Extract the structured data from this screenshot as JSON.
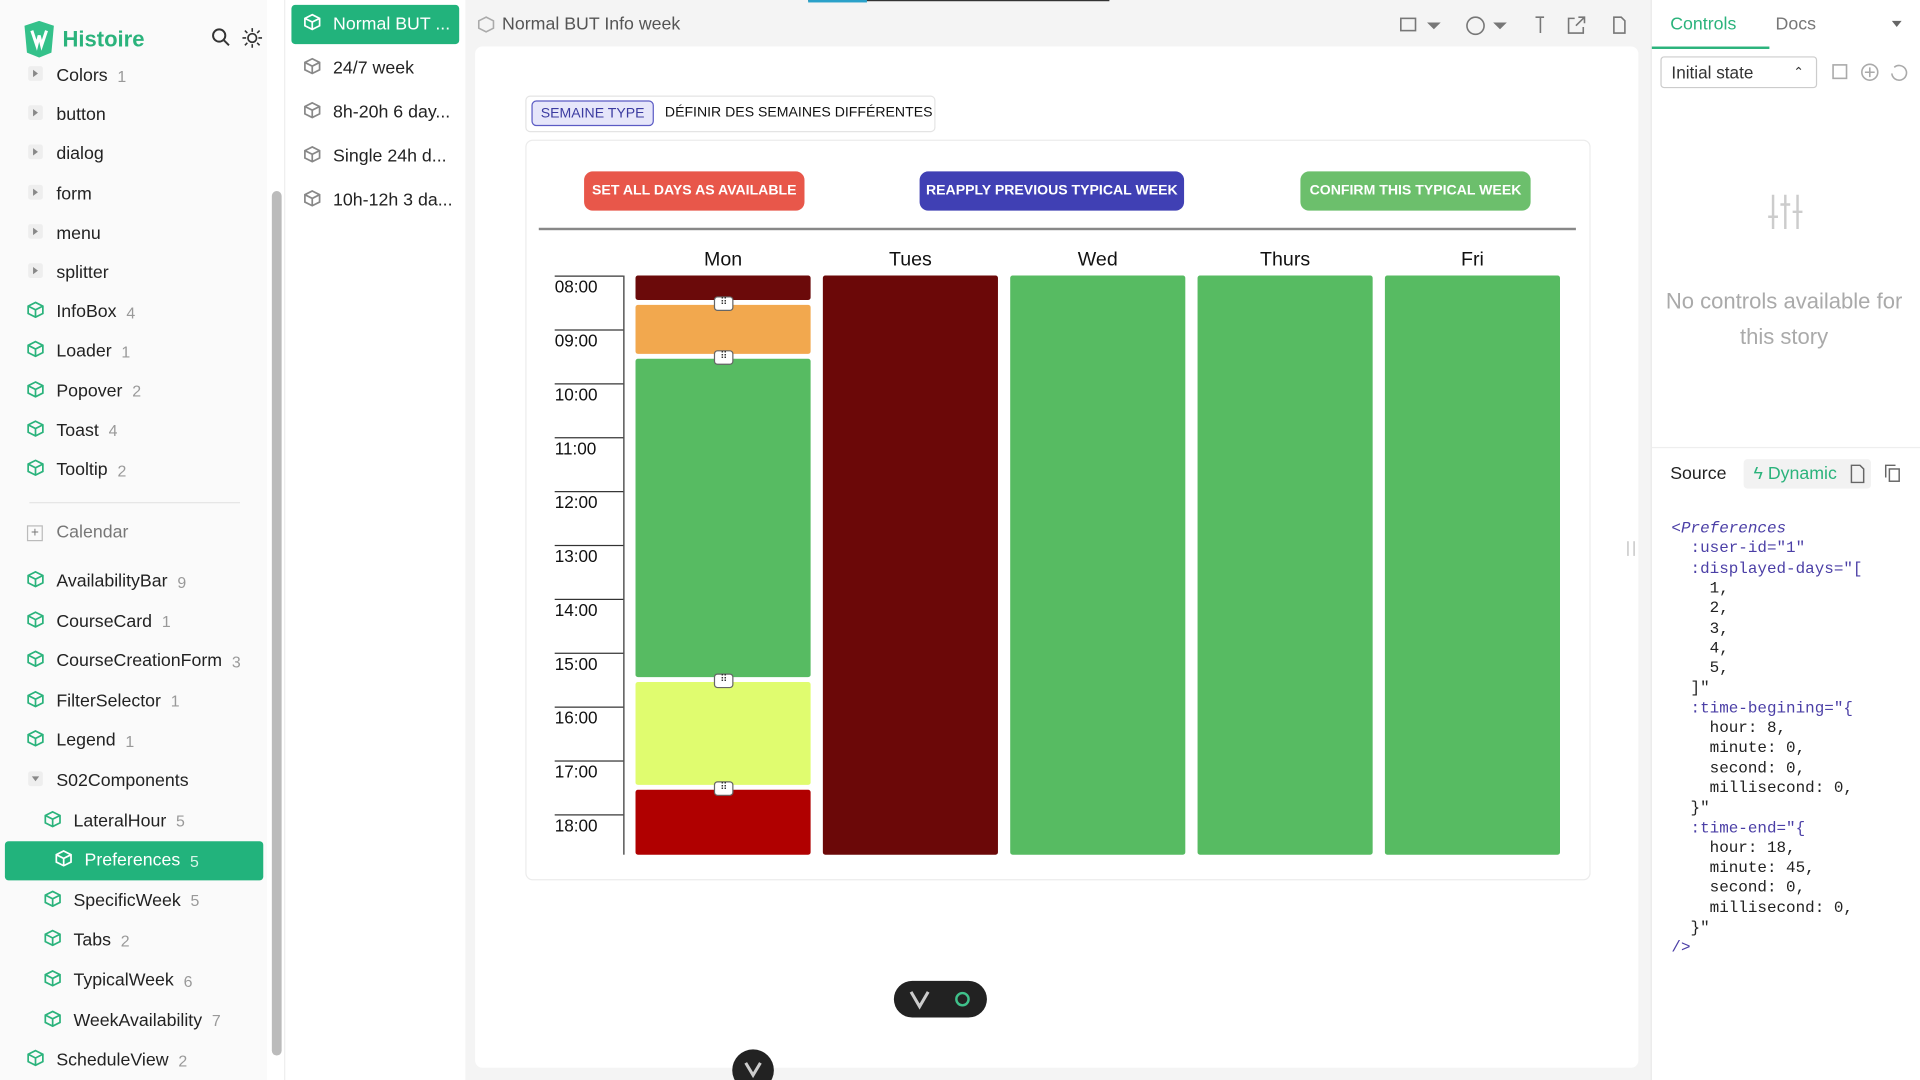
{
  "app": {
    "logo": "Histoire"
  },
  "tree": [
    {
      "label": "Colors",
      "count": 1,
      "icon": "folder",
      "depth": 0
    },
    {
      "label": "button",
      "icon": "folder",
      "depth": 0
    },
    {
      "label": "dialog",
      "icon": "folder",
      "depth": 0
    },
    {
      "label": "form",
      "icon": "folder",
      "depth": 0
    },
    {
      "label": "menu",
      "icon": "folder",
      "depth": 0
    },
    {
      "label": "splitter",
      "icon": "folder",
      "depth": 0
    },
    {
      "label": "InfoBox",
      "count": 4,
      "icon": "story",
      "depth": 0
    },
    {
      "label": "Loader",
      "count": 1,
      "icon": "story",
      "depth": 0
    },
    {
      "label": "Popover",
      "count": 2,
      "icon": "story",
      "depth": 0
    },
    {
      "label": "Toast",
      "count": 4,
      "icon": "story",
      "depth": 0
    },
    {
      "label": "Tooltip",
      "count": 2,
      "icon": "story",
      "depth": 0
    }
  ],
  "group": "Calendar",
  "tree2": [
    {
      "label": "AvailabilityBar",
      "count": 9,
      "icon": "story",
      "depth": 0
    },
    {
      "label": "CourseCard",
      "count": 1,
      "icon": "story",
      "depth": 0
    },
    {
      "label": "CourseCreationForm",
      "count": 3,
      "icon": "story",
      "depth": 0
    },
    {
      "label": "FilterSelector",
      "count": 1,
      "icon": "story",
      "depth": 0
    },
    {
      "label": "Legend",
      "count": 1,
      "icon": "story",
      "depth": 0
    },
    {
      "label": "S02Components",
      "icon": "open",
      "depth": 0
    },
    {
      "label": "LateralHour",
      "count": 5,
      "icon": "story",
      "depth": 1
    },
    {
      "label": "Preferences",
      "count": 5,
      "icon": "story",
      "depth": 1,
      "active": true
    },
    {
      "label": "SpecificWeek",
      "count": 5,
      "icon": "story",
      "depth": 1
    },
    {
      "label": "Tabs",
      "count": 2,
      "icon": "story",
      "depth": 1
    },
    {
      "label": "TypicalWeek",
      "count": 6,
      "icon": "story",
      "depth": 1
    },
    {
      "label": "WeekAvailability",
      "count": 7,
      "icon": "story",
      "depth": 1
    },
    {
      "label": "ScheduleView",
      "count": 2,
      "icon": "story",
      "depth": 0
    }
  ],
  "variants": [
    {
      "label": "Normal BUT ...",
      "active": true
    },
    {
      "label": "24/7 week"
    },
    {
      "label": "8h-20h 6 day..."
    },
    {
      "label": "Single 24h d..."
    },
    {
      "label": "10h-12h 3 da..."
    }
  ],
  "toolbar": {
    "title": "Normal BUT Info week"
  },
  "preview": {
    "tabs": [
      "SEMAINE TYPE",
      "DÉFINIR DES SEMAINES DIFFÉRENTES"
    ],
    "buttons": [
      {
        "label": "SET ALL DAYS AS AVAILABLE",
        "color": "#e8574a"
      },
      {
        "label": "REAPPLY PREVIOUS TYPICAL WEEK",
        "color": "#4040b4"
      },
      {
        "label": "CONFIRM THIS TYPICAL WEEK",
        "color": "#6cbf6c"
      }
    ],
    "hours": [
      "08:00",
      "09:00",
      "10:00",
      "11:00",
      "12:00",
      "13:00",
      "14:00",
      "15:00",
      "16:00",
      "17:00",
      "18:00"
    ],
    "start_hour": 8,
    "days": [
      {
        "name": "Mon",
        "slots": [
          {
            "start": 8,
            "end": 8.5,
            "color": "#6b0a0a"
          },
          {
            "start": 8.5,
            "end": 9.5,
            "color": "#f2a84e"
          },
          {
            "start": 9.5,
            "end": 15.5,
            "color": "#57bb62"
          },
          {
            "start": 15.5,
            "end": 17.5,
            "color": "#e0fc6f"
          },
          {
            "start": 17.5,
            "end": 18.75,
            "color": "#b00000"
          }
        ]
      },
      {
        "name": "Tues",
        "slots": [
          {
            "start": 8,
            "end": 18.75,
            "color": "#6b0808"
          }
        ]
      },
      {
        "name": "Wed",
        "slots": [
          {
            "start": 8,
            "end": 18.75,
            "color": "#57bb62"
          }
        ]
      },
      {
        "name": "Thurs",
        "slots": [
          {
            "start": 8,
            "end": 18.75,
            "color": "#57bb62"
          }
        ]
      },
      {
        "name": "Fri",
        "slots": [
          {
            "start": 8,
            "end": 18.75,
            "color": "#57bb62"
          }
        ]
      }
    ]
  },
  "panel": {
    "tabs": [
      "Controls",
      "Docs"
    ],
    "state": "Initial state",
    "empty": "No controls available for this story",
    "source": "Source",
    "dynamic": "Dynamic",
    "code": [
      "<Preferences",
      "  :user-id=\"1\"",
      "  :displayed-days=\"[",
      "    1,",
      "    2,",
      "    3,",
      "    4,",
      "    5,",
      "  ]\"",
      "  :time-begining=\"{",
      "    hour: 8,",
      "    minute: 0,",
      "    second: 0,",
      "    millisecond: 0,",
      "  }\"",
      "  :time-end=\"{",
      "    hour: 18,",
      "    minute: 45,",
      "    second: 0,",
      "    millisecond: 0,",
      "  }\"",
      "/>"
    ]
  }
}
